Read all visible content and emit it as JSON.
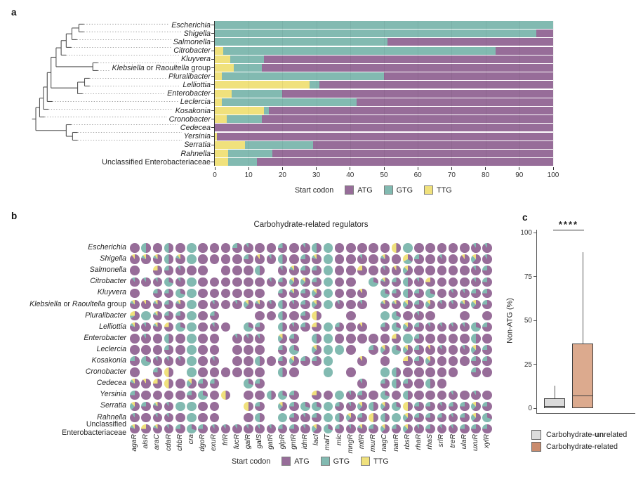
{
  "panel_labels": {
    "a": "a",
    "b": "b",
    "c": "c"
  },
  "colors": {
    "atg": "#976d99",
    "gtg": "#82bab1",
    "ttg": "#f0e17c",
    "tree": "#4f4f4f",
    "leader_dots": "#9a9a9a",
    "box_unrelated_fill": "#dadada",
    "box_related_fill": "#dcaa8e",
    "legend_unrelated_swatch": "#dcdcdc",
    "legend_related_swatch": "#ca8c6e",
    "box_border": "#3d3d3d",
    "axis": "#333333"
  },
  "legend_start_codon": {
    "title": "Start codon",
    "items": [
      {
        "name": "ATG",
        "color_key": "atg"
      },
      {
        "name": "GTG",
        "color_key": "gtg"
      },
      {
        "name": "TTG",
        "color_key": "ttg"
      }
    ]
  },
  "taxa": [
    {
      "parts": [
        "i:Escherichia"
      ]
    },
    {
      "parts": [
        "i:Shigella"
      ]
    },
    {
      "parts": [
        "i:Salmonella"
      ]
    },
    {
      "parts": [
        "i:Citrobacter"
      ]
    },
    {
      "parts": [
        "i:Kluyvera"
      ]
    },
    {
      "parts": [
        "i:Klebsiella",
        "r: or ",
        "i:Raoultella",
        "r: group"
      ]
    },
    {
      "parts": [
        "i:Pluralibacter"
      ]
    },
    {
      "parts": [
        "i:Lelliottia"
      ]
    },
    {
      "parts": [
        "i:Enterobacter"
      ]
    },
    {
      "parts": [
        "i:Leclercia"
      ]
    },
    {
      "parts": [
        "i:Kosakonia"
      ]
    },
    {
      "parts": [
        "i:Cronobacter"
      ]
    },
    {
      "parts": [
        "i:Cedecea"
      ]
    },
    {
      "parts": [
        "i:Yersinia"
      ]
    },
    {
      "parts": [
        "i:Serratia"
      ]
    },
    {
      "parts": [
        "i:Rahnella"
      ]
    },
    {
      "parts": [
        "r:Unclassified Enterobacteriaceae"
      ]
    }
  ],
  "panel_b": {
    "title": "Carbohydrate-related regulators",
    "unclassified_two_lines": [
      "Unclassified",
      "Enterobacteriaceae"
    ]
  },
  "panel_c": {
    "ylabel": "Non-ATG (%)",
    "legend": [
      {
        "prefix": "Carbohydrate-",
        "bold": "un",
        "suffix": "related",
        "swatch_key": "legend_unrelated_swatch"
      },
      {
        "prefix": "Carbohydrate-",
        "bold": "",
        "suffix": "related",
        "swatch_key": "legend_related_swatch"
      }
    ]
  },
  "chart_data": [
    {
      "type": "bar",
      "stacked": true,
      "orientation": "horizontal",
      "categories": [
        "Escherichia",
        "Shigella",
        "Salmonella",
        "Citrobacter",
        "Kluyvera",
        "Klebsiella or Raoultella group",
        "Pluralibacter",
        "Lelliottia",
        "Enterobacter",
        "Leclercia",
        "Kosakonia",
        "Cronobacter",
        "Cedecea",
        "Yersinia",
        "Serratia",
        "Rahnella",
        "Unclassified Enterobacteriaceae"
      ],
      "series": [
        {
          "name": "ATG",
          "values": [
            0,
            5,
            49,
            17,
            85.5,
            86,
            50,
            69,
            80,
            58,
            84,
            86,
            100,
            99.3,
            71,
            83,
            87.5
          ]
        },
        {
          "name": "GTG",
          "values": [
            100,
            95,
            51,
            80.5,
            10,
            8.5,
            48,
            3,
            15,
            40,
            1.5,
            10.5,
            0,
            0,
            20,
            13,
            8.5
          ]
        },
        {
          "name": "TTG",
          "values": [
            0,
            0,
            0,
            2.5,
            4.5,
            5.5,
            2,
            28,
            5,
            2,
            14.5,
            3.5,
            0,
            0.7,
            9,
            4,
            4
          ]
        }
      ],
      "stack_order_left_to_right": [
        "TTG",
        "GTG",
        "ATG"
      ],
      "xlim": [
        0,
        100
      ],
      "xticks": [
        0,
        10,
        20,
        30,
        40,
        50,
        60,
        70,
        80,
        90,
        100
      ],
      "legend_title": "Start codon"
    },
    {
      "type": "pie-matrix",
      "title": "Carbohydrate-related regulators",
      "rows": [
        "Escherichia",
        "Shigella",
        "Salmonella",
        "Citrobacter",
        "Kluyvera",
        "Klebsiella or Raoultella group",
        "Pluralibacter",
        "Lelliottia",
        "Enterobacter",
        "Leclercia",
        "Kosakonia",
        "Cronobacter",
        "Cedecea",
        "Yersinia",
        "Serratia",
        "Rahnella",
        "Unclassified Enterobacteriaceae"
      ],
      "columns": [
        "agaR",
        "alsR",
        "araC",
        "cdaR",
        "chbR",
        "cra",
        "dgoR",
        "exuR",
        "frlR",
        "fucR",
        "galR",
        "galS",
        "gatR",
        "glpR",
        "gntR",
        "idnR",
        "lacI",
        "malT",
        "mlc",
        "mngR",
        "mtlR",
        "murR",
        "nagC",
        "nanR",
        "rbsR",
        "rhaR",
        "rhaS",
        "srlR",
        "treR",
        "ulaR",
        "uxuR",
        "xylR"
      ],
      "cell_codes": [
        "AhAhAGAAAbaAAbAahGAAAAAvGAAAAAaa",
        "tmmhmGAAAAbtahAbmGAAaAmAwbAaAtna",
        "A.ubaAA.AAAh.ambbGAAuAatnAAAAAab",
        "aaagaGAAAAAAabnnbGAA.gmbhauAAAab",
        "A.bbgGAAAAAA.bmbnGAAt.gbhbgAaabb",
        "mtmbmGAaAanmahabnGaAa.mmnbnaamnb",
        "oGmbbGAb...AAhAbv..A..GgAaA..A.A",
        "mamugGAaA.gb.habuGbAt.bgnbaaaagb",
        "AaAhAGAA.aaa.nb.hGAAAAAuGbAAAAhA",
        "AAAbAGAA.AAA.bg.nGGA.bngnbtaAanb",
        "bgaaaGAa.AAhAbnbbG..t.A.ubnAAAbb",
        "A.bv.GAAAAAA.hA..G.A..GhAAAAA.bA",
        "mtuvAnbb..gb........a.bhbAhA....",
        "bAAAAbgAv.AAhgb.uAGabAgAhAAAaAaA",
        "nbmaGGAA..vb.nbggGbanhngvbbabbnb",
        "aAaaAGAA..Ah.GbabGhnbvhGnbbbabng",
        "mumabgbaaaaaabbangbambnbnabaabbb"
      ],
      "code_values": {
        "A": [
          100,
          0,
          0
        ],
        "G": [
          0,
          100,
          0
        ],
        "a": [
          90,
          10,
          0
        ],
        "b": [
          75,
          25,
          0
        ],
        "h": [
          50,
          50,
          0
        ],
        "g": [
          30,
          70,
          0
        ],
        "t": [
          90,
          0,
          10
        ],
        "u": [
          75,
          0,
          25
        ],
        "v": [
          50,
          0,
          50
        ],
        "m": [
          80,
          10,
          10
        ],
        "n": [
          62,
          25,
          13
        ],
        "o": [
          65,
          10,
          25
        ],
        "w": [
          34,
          33,
          33
        ]
      },
      "missing_code": ".",
      "slice_order": [
        "ATG",
        "GTG",
        "TTG"
      ],
      "legend_title": "Start codon"
    },
    {
      "type": "box",
      "ylabel": "Non-ATG (%)",
      "ylim": [
        0,
        100
      ],
      "yticks": [
        0,
        25,
        50,
        75,
        100
      ],
      "significance": "****",
      "boxes": [
        {
          "name": "Carbohydrate-unrelated",
          "q1": 0,
          "median": 1,
          "q3": 5.5,
          "whisker_low": 0,
          "whisker_high": 13
        },
        {
          "name": "Carbohydrate-related",
          "q1": 0,
          "median": 7,
          "q3": 37,
          "whisker_low": 0,
          "whisker_high": 89
        }
      ]
    }
  ]
}
